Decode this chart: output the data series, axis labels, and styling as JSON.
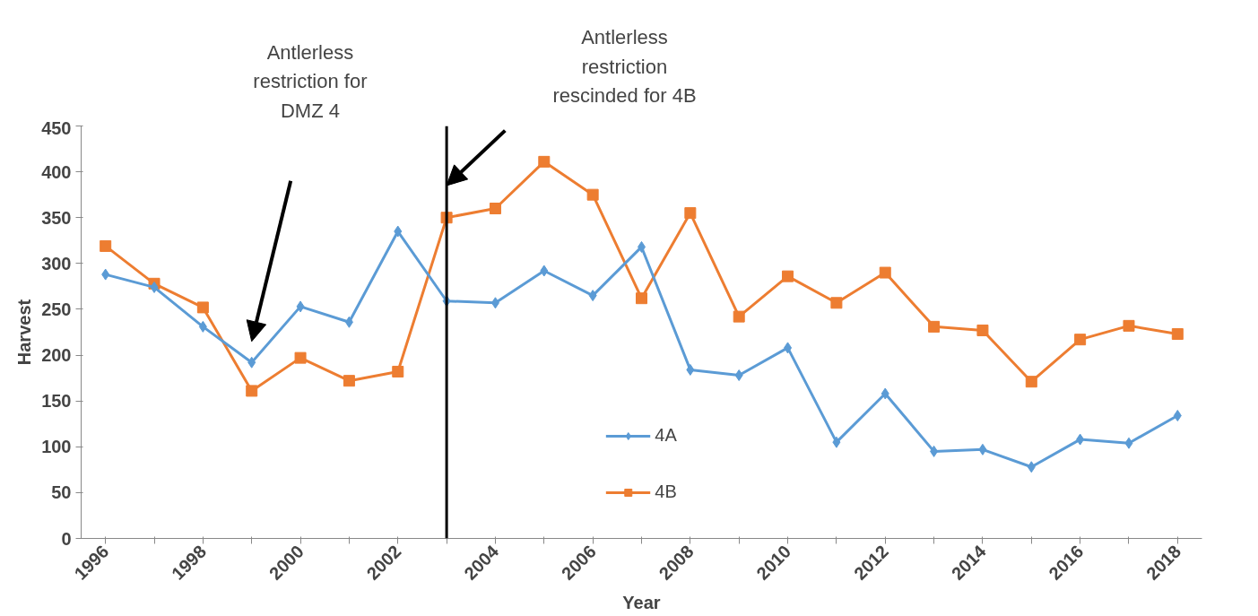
{
  "chart_data": {
    "type": "line",
    "xlabel": "Year",
    "ylabel": "Harvest",
    "x": [
      1996,
      1997,
      1998,
      1999,
      2000,
      2001,
      2002,
      2003,
      2004,
      2005,
      2006,
      2007,
      2008,
      2009,
      2010,
      2011,
      2012,
      2013,
      2014,
      2015,
      2016,
      2017,
      2018
    ],
    "series": [
      {
        "name": "4A",
        "color": "#5b9bd5",
        "marker": "diamond",
        "values": [
          288,
          274,
          231,
          192,
          253,
          236,
          335,
          259,
          257,
          292,
          265,
          318,
          184,
          178,
          208,
          105,
          158,
          95,
          97,
          78,
          108,
          104,
          134
        ]
      },
      {
        "name": "4B",
        "color": "#ed7d31",
        "marker": "square",
        "values": [
          319,
          278,
          252,
          161,
          197,
          172,
          182,
          350,
          360,
          411,
          375,
          262,
          355,
          242,
          286,
          257,
          290,
          231,
          227,
          171,
          217,
          232,
          223
        ]
      }
    ],
    "xlim": [
      1995.5,
      2018.5
    ],
    "xticks": [
      1996,
      {
        "value": 1997,
        "label": null
      },
      1998,
      {
        "value": 1999,
        "label": null
      },
      2000,
      {
        "value": 2001,
        "label": null
      },
      2002,
      {
        "value": 2003,
        "label": null
      },
      2004,
      {
        "value": 2005,
        "label": null
      },
      2006,
      {
        "value": 2007,
        "label": null
      },
      2008,
      {
        "value": 2009,
        "label": null
      },
      2010,
      {
        "value": 2011,
        "label": null
      },
      2012,
      {
        "value": 2013,
        "label": null
      },
      2014,
      {
        "value": 2015,
        "label": null
      },
      2016,
      {
        "value": 2017,
        "label": null
      },
      2018
    ],
    "ylim": [
      0,
      450
    ],
    "yticks": [
      0,
      50,
      100,
      150,
      200,
      250,
      300,
      350,
      400,
      450
    ],
    "ref_lines": [
      {
        "axis": "x",
        "value": 2003,
        "color": "#000000"
      }
    ],
    "annotations": [
      "Antlerless\nrestriction for\nDMZ 4",
      "Antlerless\nrestriction\nrescinded for 4B"
    ],
    "legend": "bottom",
    "line_style": "solid"
  }
}
